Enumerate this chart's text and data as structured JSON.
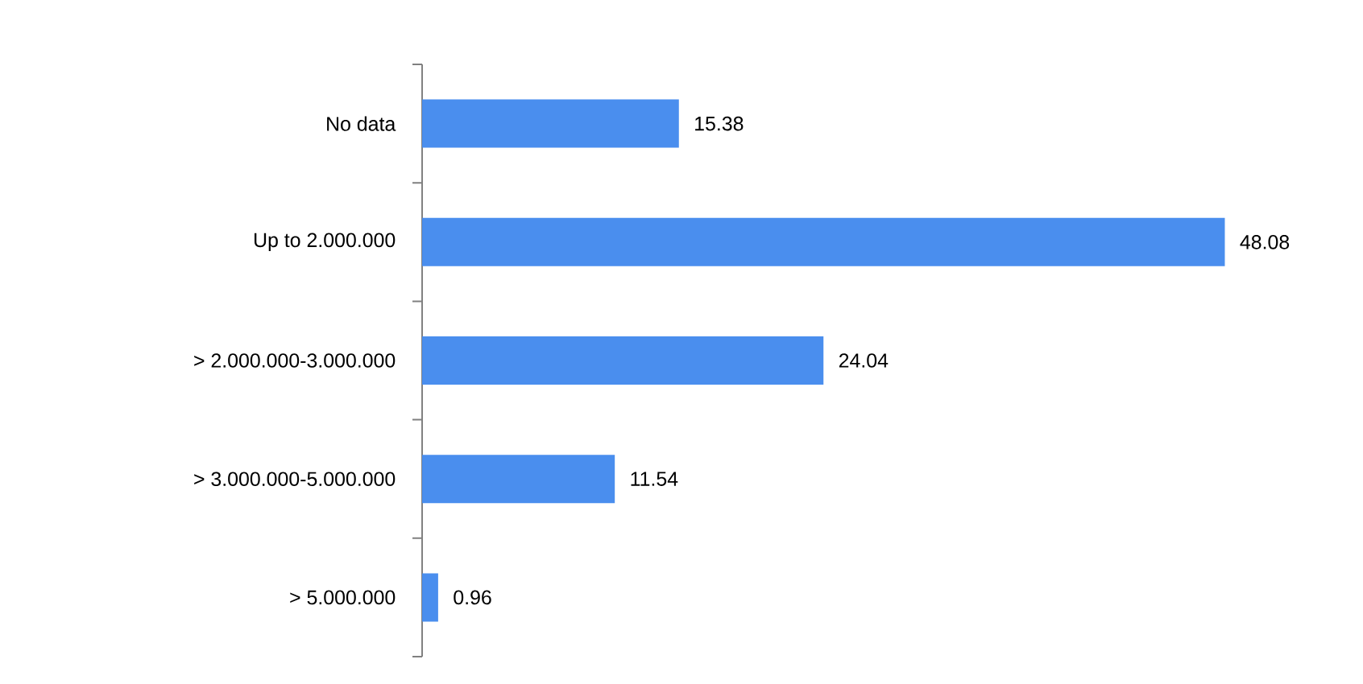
{
  "chart_data": {
    "type": "bar",
    "orientation": "horizontal",
    "categories": [
      "No data",
      "Up to 2.000.000",
      "> 2.000.000-3.000.000",
      "> 3.000.000-5.000.000",
      "> 5.000.000"
    ],
    "values": [
      15.38,
      48.08,
      24.04,
      11.54,
      0.96
    ],
    "color": "#4a8eee",
    "data_labels": true
  }
}
